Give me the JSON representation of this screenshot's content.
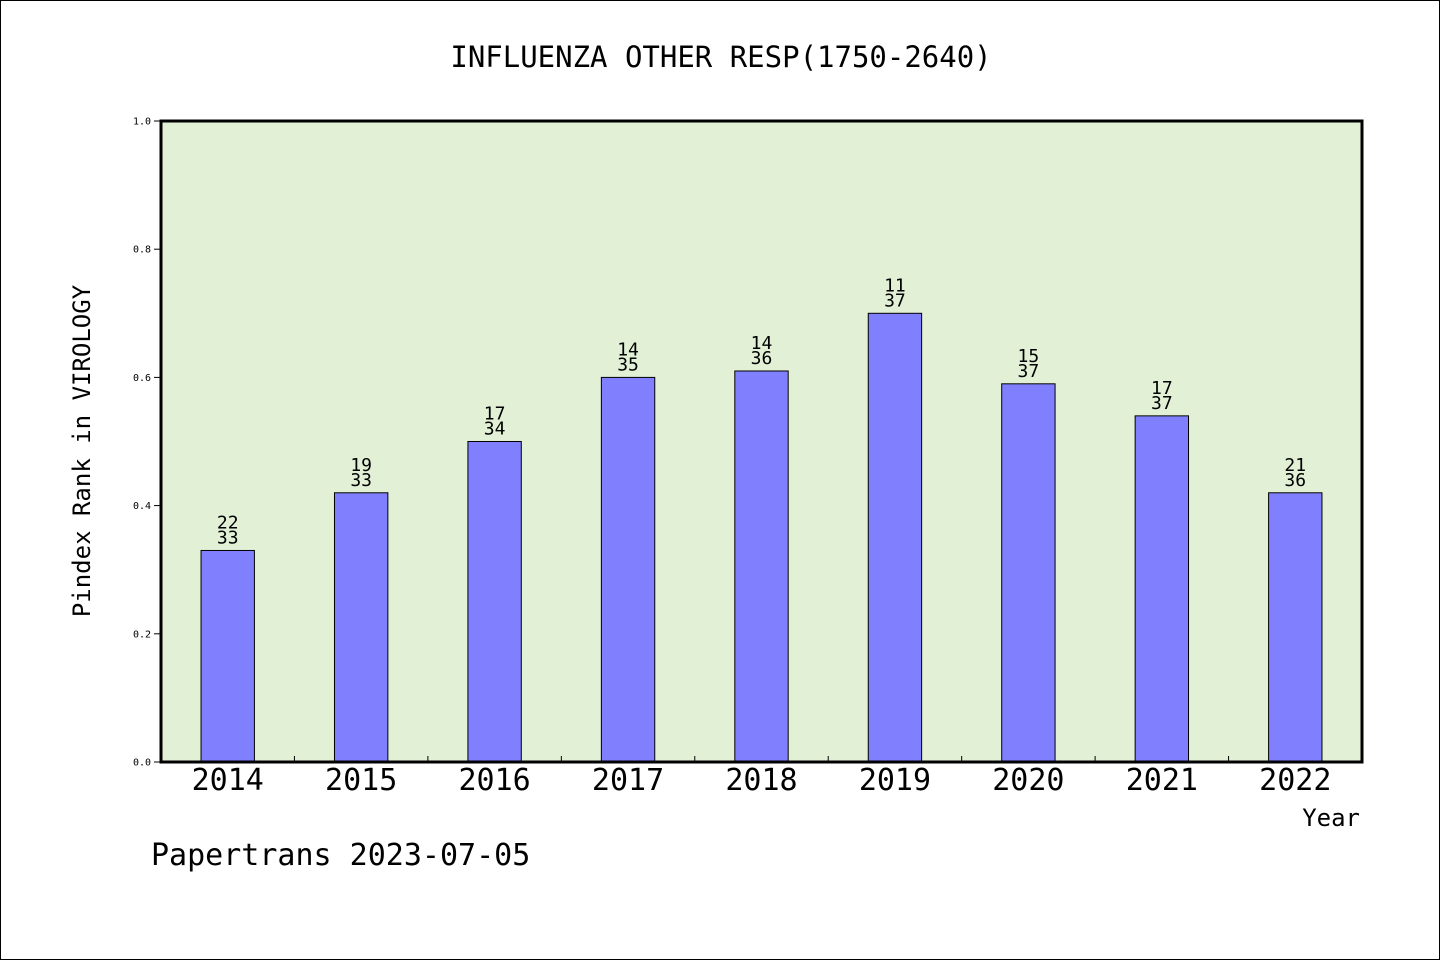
{
  "chart_data": {
    "type": "bar",
    "title": "INFLUENZA OTHER RESP(1750-2640)",
    "xlabel": "Year",
    "ylabel": "Pindex Rank in VIROLOGY",
    "ylim": [
      0,
      1.0
    ],
    "yticks": [
      "0.0",
      "0.2",
      "0.4",
      "0.6",
      "0.8",
      "1.0"
    ],
    "categories": [
      "2014",
      "2015",
      "2016",
      "2017",
      "2018",
      "2019",
      "2020",
      "2021",
      "2022"
    ],
    "values": [
      0.33,
      0.42,
      0.5,
      0.6,
      0.61,
      0.7,
      0.59,
      0.54,
      0.42
    ],
    "rank_labels": [
      "22",
      "19",
      "17",
      "14",
      "14",
      "11",
      "15",
      "17",
      "21"
    ],
    "total_labels": [
      "33",
      "33",
      "34",
      "35",
      "36",
      "37",
      "37",
      "37",
      "36"
    ],
    "grid": false,
    "colors": {
      "plot_background": "#e2f0d6",
      "bar_fill": "#8080ff",
      "bar_stroke": "#000000"
    }
  },
  "footer": "Papertrans 2023-07-05"
}
